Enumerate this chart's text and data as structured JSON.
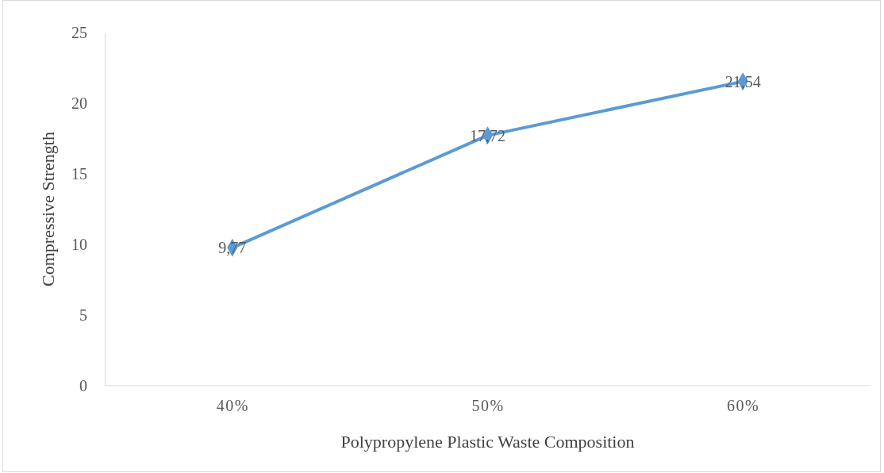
{
  "chart_data": {
    "type": "line",
    "xlabel": "Polypropylene Plastic Waste Composition",
    "ylabel": "Compressive Strength",
    "categories": [
      "40%",
      "50%",
      "60%"
    ],
    "series": [
      {
        "color": "#5b9bd5",
        "values": [
          9.77,
          17.72,
          21.54
        ],
        "value_labels": [
          "9,77",
          "17,72",
          "21,54"
        ]
      }
    ],
    "ylim": [
      0,
      25
    ],
    "yticks": [
      0,
      5,
      10,
      15,
      20,
      25
    ],
    "grid": false,
    "marker": "diamond",
    "line_style": "solid"
  }
}
